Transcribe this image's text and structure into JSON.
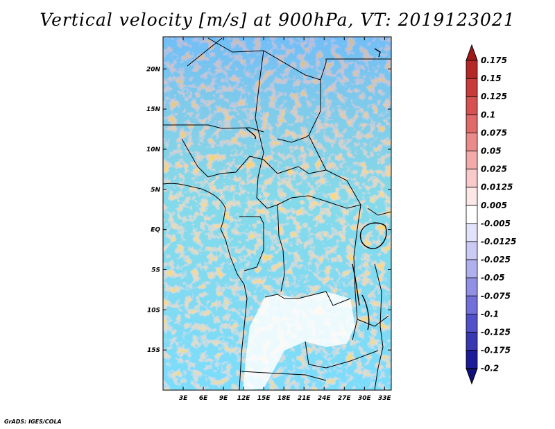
{
  "title": "Vertical velocity [m/s] at 900hPa, VT: 2019123021",
  "credit": "GrADS: IGES/COLA",
  "map": {
    "region": "Central Africa",
    "lat_range": [
      -20,
      24
    ],
    "lon_range": [
      0,
      34
    ],
    "lat_ticks": [
      {
        "value": 20,
        "label": "20N"
      },
      {
        "value": 15,
        "label": "15N"
      },
      {
        "value": 10,
        "label": "10N"
      },
      {
        "value": 5,
        "label": "5N"
      },
      {
        "value": 0,
        "label": "EQ"
      },
      {
        "value": -5,
        "label": "5S"
      },
      {
        "value": -10,
        "label": "10S"
      },
      {
        "value": -15,
        "label": "15S"
      }
    ],
    "lon_ticks": [
      {
        "value": 3,
        "label": "3E"
      },
      {
        "value": 6,
        "label": "6E"
      },
      {
        "value": 9,
        "label": "9E"
      },
      {
        "value": 12,
        "label": "12E"
      },
      {
        "value": 15,
        "label": "15E"
      },
      {
        "value": 18,
        "label": "18E"
      },
      {
        "value": 21,
        "label": "21E"
      },
      {
        "value": 24,
        "label": "24E"
      },
      {
        "value": 27,
        "label": "27E"
      },
      {
        "value": 30,
        "label": "30E"
      },
      {
        "value": 33,
        "label": "33E"
      }
    ]
  },
  "colorbar": {
    "labels": [
      "0.175",
      "0.15",
      "0.125",
      "0.1",
      "0.075",
      "0.05",
      "0.025",
      "0.0125",
      "0.005",
      "-0.005",
      "-0.0125",
      "-0.025",
      "-0.05",
      "-0.075",
      "-0.1",
      "-0.125",
      "-0.175",
      "-0.2"
    ],
    "colors": [
      "#a01a1a",
      "#b52828",
      "#c93a3a",
      "#d65252",
      "#e06a6a",
      "#ea8a8a",
      "#f2aaaa",
      "#f8caca",
      "#fce6e6",
      "#ffffff",
      "#e2e2fa",
      "#cacaf4",
      "#b0b0ee",
      "#9090e4",
      "#7070d8",
      "#5050c8",
      "#3838b0",
      "#1c1c98",
      "#10107a"
    ]
  }
}
